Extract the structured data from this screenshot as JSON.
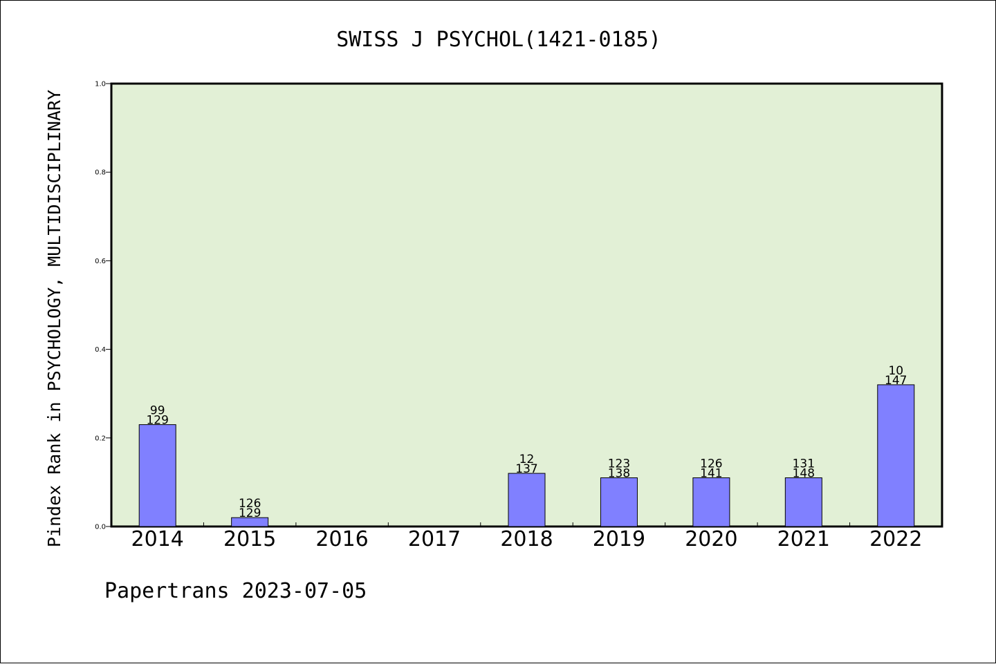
{
  "chart_data": {
    "type": "bar",
    "title": "SWISS J PSYCHOL(1421-0185)",
    "xlabel": "",
    "ylabel": "Pindex Rank in PSYCHOLOGY, MULTIDISCIPLINARY",
    "ylim": [
      0.0,
      1.0
    ],
    "yticks": [
      "0.0",
      "0.2",
      "0.4",
      "0.6",
      "0.8",
      "1.0"
    ],
    "categories": [
      "2014",
      "2015",
      "2016",
      "2017",
      "2018",
      "2019",
      "2020",
      "2021",
      "2022"
    ],
    "values": [
      0.23,
      0.02,
      0,
      0,
      0.12,
      0.11,
      0.11,
      0.11,
      0.32
    ],
    "rank_labels": [
      "99",
      "126",
      "",
      "",
      "12",
      "123",
      "126",
      "131",
      "10"
    ],
    "total_labels": [
      "129",
      "129",
      "",
      "",
      "137",
      "138",
      "141",
      "148",
      "147"
    ],
    "grid": false,
    "colors": {
      "plot_background": "#e2f0d6",
      "bar_fill": "#8080ff",
      "bar_stroke": "#000000"
    }
  },
  "footer": "Papertrans 2023-07-05"
}
